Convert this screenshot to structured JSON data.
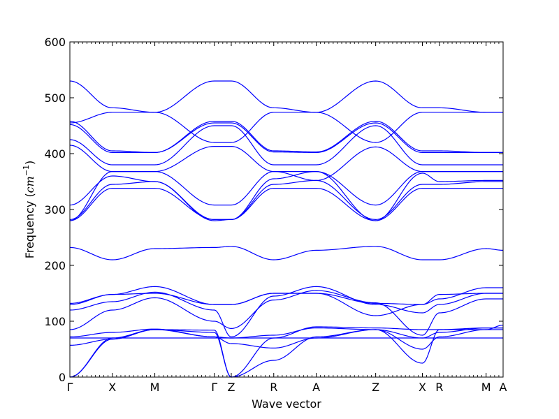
{
  "chart_data": {
    "type": "line",
    "title": "",
    "xlabel": "Wave vector",
    "ylabel_text": "Frequency (",
    "ylabel_unit": "cm",
    "ylabel_exp": "−1",
    "ylabel_close": ")",
    "ylim": [
      0,
      600
    ],
    "yticks": [
      "0",
      "100",
      "200",
      "300",
      "400",
      "500",
      "600"
    ],
    "x_labels": [
      "Γ",
      "X",
      "M",
      "Γ",
      "Z",
      "R",
      "A",
      "Z",
      "X",
      "R",
      "M",
      "A"
    ],
    "x_positions": [
      0,
      1,
      2,
      3.4,
      3.8,
      4.8,
      5.8,
      7.2,
      8.3,
      8.7,
      9.8,
      10.2
    ],
    "grid": false,
    "legend": "none",
    "line_color": "#0000ff",
    "bands": [
      [
        0,
        70,
        85,
        80,
        0,
        70,
        90,
        88,
        85,
        85,
        88,
        88
      ],
      [
        0,
        68,
        85,
        84,
        0,
        30,
        72,
        85,
        25,
        85,
        85,
        93
      ],
      [
        57,
        68,
        85,
        72,
        60,
        52,
        70,
        85,
        50,
        72,
        85,
        85
      ],
      [
        70,
        70,
        70,
        70,
        70,
        70,
        70,
        70,
        70,
        70,
        70,
        70
      ],
      [
        72,
        80,
        86,
        72,
        70,
        75,
        88,
        85,
        70,
        80,
        88,
        88
      ],
      [
        85,
        120,
        142,
        100,
        87,
        138,
        155,
        133,
        75,
        115,
        140,
        140
      ],
      [
        120,
        135,
        152,
        120,
        72,
        145,
        162,
        130,
        115,
        130,
        150,
        150
      ],
      [
        130,
        148,
        162,
        130,
        130,
        150,
        150,
        132,
        130,
        140,
        160,
        160
      ],
      [
        132,
        148,
        150,
        130,
        130,
        150,
        150,
        110,
        130,
        148,
        150,
        150
      ],
      [
        232,
        210,
        230,
        232,
        234,
        210,
        227,
        234,
        210,
        210,
        230,
        227
      ],
      [
        280,
        338,
        338,
        282,
        282,
        338,
        338,
        280,
        338,
        338,
        338,
        338
      ],
      [
        282,
        345,
        350,
        282,
        282,
        345,
        352,
        282,
        345,
        345,
        350,
        350
      ],
      [
        308,
        360,
        350,
        280,
        282,
        355,
        368,
        280,
        365,
        350,
        352,
        352
      ],
      [
        280,
        368,
        368,
        308,
        308,
        368,
        368,
        308,
        368,
        368,
        368,
        368
      ],
      [
        415,
        368,
        368,
        413,
        413,
        368,
        352,
        412,
        368,
        368,
        368,
        368
      ],
      [
        425,
        380,
        380,
        450,
        450,
        380,
        380,
        450,
        380,
        380,
        380,
        380
      ],
      [
        452,
        402,
        402,
        455,
        455,
        403,
        402,
        455,
        402,
        402,
        402,
        402
      ],
      [
        458,
        405,
        402,
        458,
        458,
        405,
        403,
        458,
        405,
        405,
        402,
        402
      ],
      [
        455,
        474,
        474,
        420,
        420,
        474,
        474,
        420,
        474,
        474,
        474,
        474
      ],
      [
        530,
        482,
        474,
        530,
        530,
        482,
        474,
        530,
        482,
        482,
        474,
        474
      ]
    ]
  }
}
